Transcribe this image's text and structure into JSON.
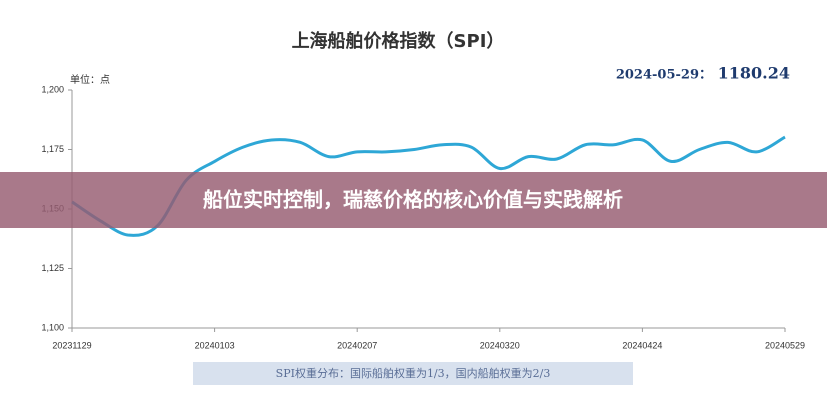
{
  "chart_data": {
    "type": "line",
    "title": "上海船舶价格指数（SPI）",
    "y_label": "单位：点",
    "latest_date": "2024-05-29：",
    "footnote": "SPI权重分布：国际船舶权重为1/3，国内船舶权重为2/3",
    "categories": [
      "20231129",
      null,
      null,
      null,
      null,
      "20240103",
      null,
      null,
      null,
      null,
      "20240207",
      null,
      null,
      null,
      null,
      "20240320",
      null,
      null,
      null,
      null,
      "20240424",
      null,
      null,
      null,
      null,
      "20240529"
    ],
    "series": [
      {
        "name": "SPI",
        "color": "#2ea7d6",
        "values": [
          1153,
          1145,
          1139,
          1143,
          1162,
          1170,
          1176,
          1179,
          1178,
          1172,
          1174,
          1174,
          1175,
          1177,
          1176,
          1167,
          1172,
          1171,
          1177,
          1177,
          1179,
          1170,
          1175,
          1178,
          1174,
          1180.24
        ]
      }
    ],
    "ylim": [
      1100,
      1200
    ],
    "yticks": [
      {
        "value": 1100,
        "label": "1,100"
      },
      {
        "value": 1125,
        "label": "1,125"
      },
      {
        "value": 1150,
        "label": "1,150"
      },
      {
        "value": 1175,
        "label": "1,175"
      },
      {
        "value": 1200,
        "label": "1,200"
      }
    ],
    "grid": false
  },
  "banner": {
    "text": "船位实时控制，瑞慈价格的核心价值与实践解析"
  }
}
